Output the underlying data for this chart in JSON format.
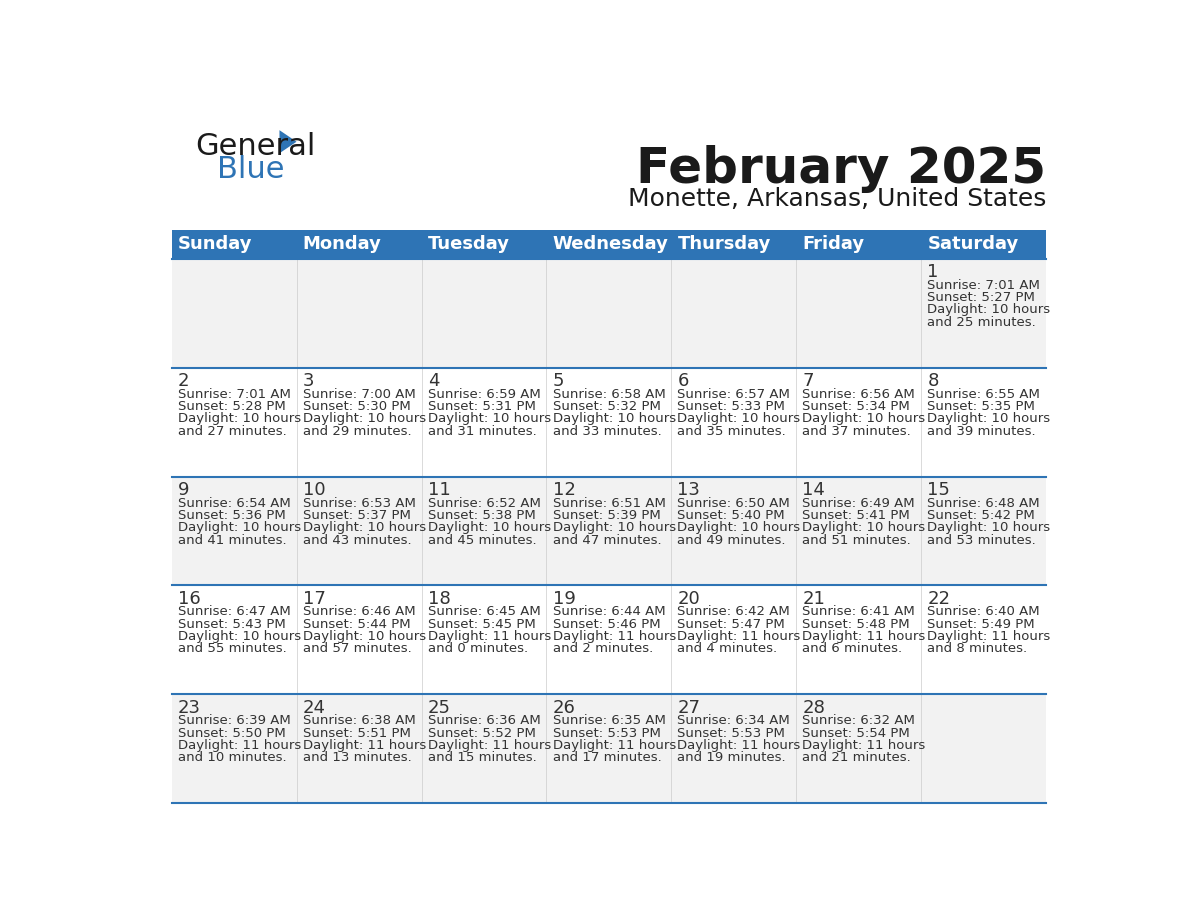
{
  "title": "February 2025",
  "subtitle": "Monette, Arkansas, United States",
  "header_bg": "#2E74B5",
  "header_text_color": "#FFFFFF",
  "days_of_week": [
    "Sunday",
    "Monday",
    "Tuesday",
    "Wednesday",
    "Thursday",
    "Friday",
    "Saturday"
  ],
  "row_bg_odd": "#F2F2F2",
  "row_bg_even": "#FFFFFF",
  "separator_color": "#2E74B5",
  "day_number_color": "#333333",
  "info_text_color": "#333333",
  "calendar": [
    [
      {
        "day": "",
        "sunrise": "",
        "sunset": "",
        "daylight": ""
      },
      {
        "day": "",
        "sunrise": "",
        "sunset": "",
        "daylight": ""
      },
      {
        "day": "",
        "sunrise": "",
        "sunset": "",
        "daylight": ""
      },
      {
        "day": "",
        "sunrise": "",
        "sunset": "",
        "daylight": ""
      },
      {
        "day": "",
        "sunrise": "",
        "sunset": "",
        "daylight": ""
      },
      {
        "day": "",
        "sunrise": "",
        "sunset": "",
        "daylight": ""
      },
      {
        "day": "1",
        "sunrise": "7:01 AM",
        "sunset": "5:27 PM",
        "daylight": "10 hours\nand 25 minutes."
      }
    ],
    [
      {
        "day": "2",
        "sunrise": "7:01 AM",
        "sunset": "5:28 PM",
        "daylight": "10 hours\nand 27 minutes."
      },
      {
        "day": "3",
        "sunrise": "7:00 AM",
        "sunset": "5:30 PM",
        "daylight": "10 hours\nand 29 minutes."
      },
      {
        "day": "4",
        "sunrise": "6:59 AM",
        "sunset": "5:31 PM",
        "daylight": "10 hours\nand 31 minutes."
      },
      {
        "day": "5",
        "sunrise": "6:58 AM",
        "sunset": "5:32 PM",
        "daylight": "10 hours\nand 33 minutes."
      },
      {
        "day": "6",
        "sunrise": "6:57 AM",
        "sunset": "5:33 PM",
        "daylight": "10 hours\nand 35 minutes."
      },
      {
        "day": "7",
        "sunrise": "6:56 AM",
        "sunset": "5:34 PM",
        "daylight": "10 hours\nand 37 minutes."
      },
      {
        "day": "8",
        "sunrise": "6:55 AM",
        "sunset": "5:35 PM",
        "daylight": "10 hours\nand 39 minutes."
      }
    ],
    [
      {
        "day": "9",
        "sunrise": "6:54 AM",
        "sunset": "5:36 PM",
        "daylight": "10 hours\nand 41 minutes."
      },
      {
        "day": "10",
        "sunrise": "6:53 AM",
        "sunset": "5:37 PM",
        "daylight": "10 hours\nand 43 minutes."
      },
      {
        "day": "11",
        "sunrise": "6:52 AM",
        "sunset": "5:38 PM",
        "daylight": "10 hours\nand 45 minutes."
      },
      {
        "day": "12",
        "sunrise": "6:51 AM",
        "sunset": "5:39 PM",
        "daylight": "10 hours\nand 47 minutes."
      },
      {
        "day": "13",
        "sunrise": "6:50 AM",
        "sunset": "5:40 PM",
        "daylight": "10 hours\nand 49 minutes."
      },
      {
        "day": "14",
        "sunrise": "6:49 AM",
        "sunset": "5:41 PM",
        "daylight": "10 hours\nand 51 minutes."
      },
      {
        "day": "15",
        "sunrise": "6:48 AM",
        "sunset": "5:42 PM",
        "daylight": "10 hours\nand 53 minutes."
      }
    ],
    [
      {
        "day": "16",
        "sunrise": "6:47 AM",
        "sunset": "5:43 PM",
        "daylight": "10 hours\nand 55 minutes."
      },
      {
        "day": "17",
        "sunrise": "6:46 AM",
        "sunset": "5:44 PM",
        "daylight": "10 hours\nand 57 minutes."
      },
      {
        "day": "18",
        "sunrise": "6:45 AM",
        "sunset": "5:45 PM",
        "daylight": "11 hours\nand 0 minutes."
      },
      {
        "day": "19",
        "sunrise": "6:44 AM",
        "sunset": "5:46 PM",
        "daylight": "11 hours\nand 2 minutes."
      },
      {
        "day": "20",
        "sunrise": "6:42 AM",
        "sunset": "5:47 PM",
        "daylight": "11 hours\nand 4 minutes."
      },
      {
        "day": "21",
        "sunrise": "6:41 AM",
        "sunset": "5:48 PM",
        "daylight": "11 hours\nand 6 minutes."
      },
      {
        "day": "22",
        "sunrise": "6:40 AM",
        "sunset": "5:49 PM",
        "daylight": "11 hours\nand 8 minutes."
      }
    ],
    [
      {
        "day": "23",
        "sunrise": "6:39 AM",
        "sunset": "5:50 PM",
        "daylight": "11 hours\nand 10 minutes."
      },
      {
        "day": "24",
        "sunrise": "6:38 AM",
        "sunset": "5:51 PM",
        "daylight": "11 hours\nand 13 minutes."
      },
      {
        "day": "25",
        "sunrise": "6:36 AM",
        "sunset": "5:52 PM",
        "daylight": "11 hours\nand 15 minutes."
      },
      {
        "day": "26",
        "sunrise": "6:35 AM",
        "sunset": "5:53 PM",
        "daylight": "11 hours\nand 17 minutes."
      },
      {
        "day": "27",
        "sunrise": "6:34 AM",
        "sunset": "5:53 PM",
        "daylight": "11 hours\nand 19 minutes."
      },
      {
        "day": "28",
        "sunrise": "6:32 AM",
        "sunset": "5:54 PM",
        "daylight": "11 hours\nand 21 minutes."
      },
      {
        "day": "",
        "sunrise": "",
        "sunset": "",
        "daylight": ""
      }
    ]
  ],
  "logo_color_general": "#1a1a1a",
  "logo_color_blue": "#2E74B5",
  "logo_triangle_color": "#2E74B5"
}
